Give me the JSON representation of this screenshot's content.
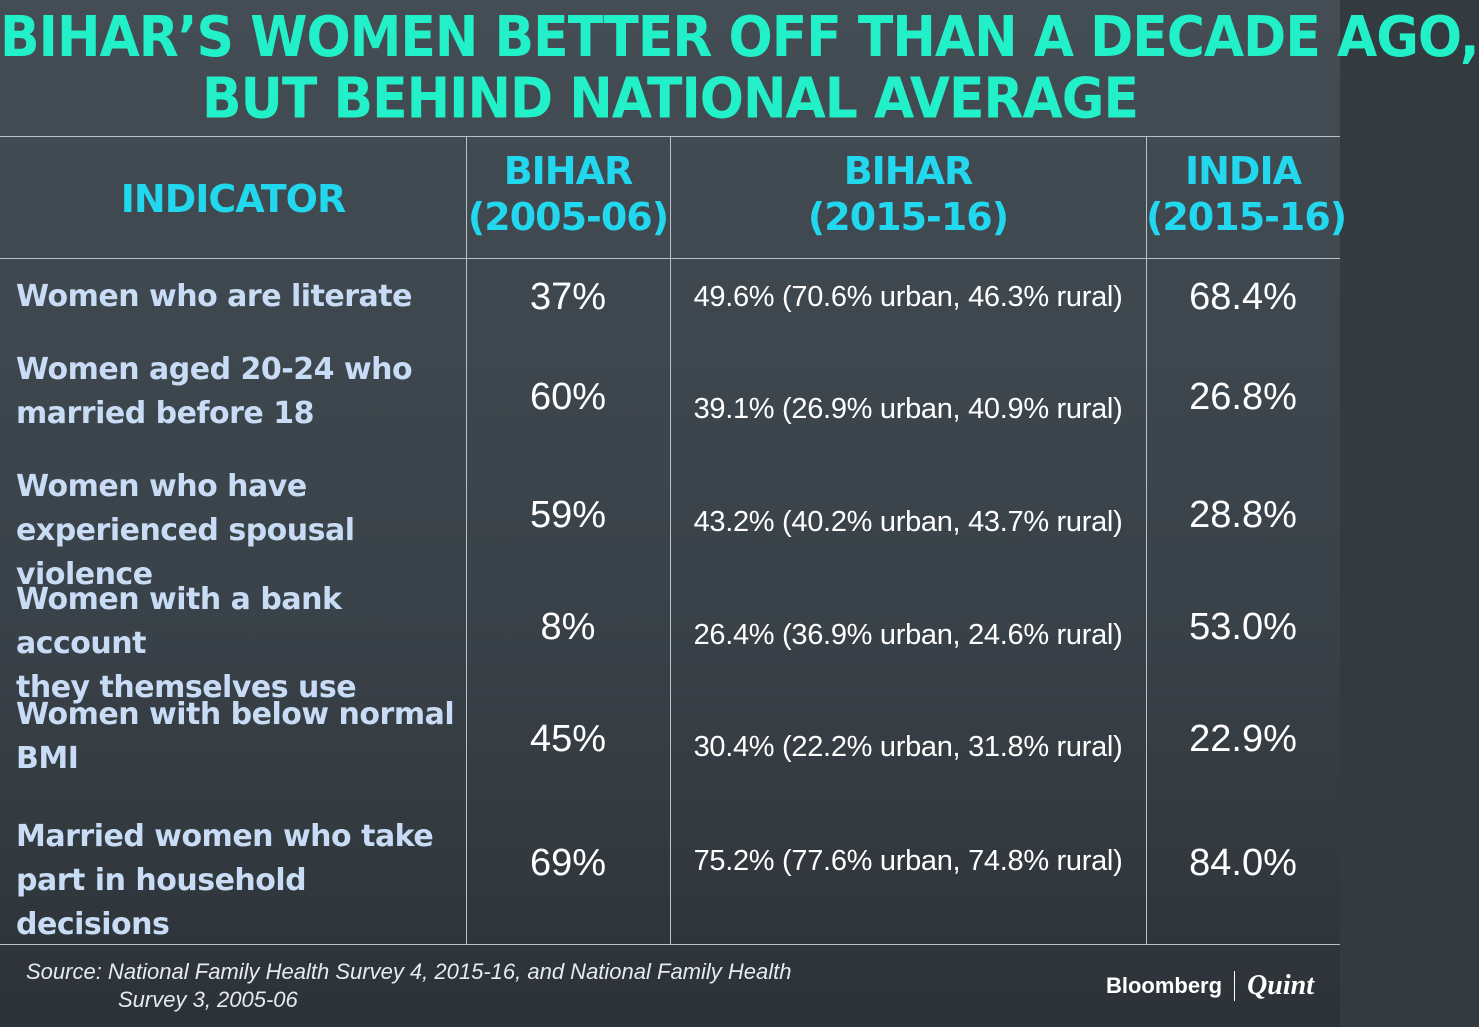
{
  "chart_data": {
    "type": "table",
    "title": [
      "BIHAR’S WOMEN BETTER OFF THAN A DECADE AGO,",
      "BUT BEHIND NATIONAL AVERAGE"
    ],
    "columns": [
      {
        "line1": "INDICATOR",
        "line2": ""
      },
      {
        "line1": "BIHAR",
        "line2": "(2005-06)"
      },
      {
        "line1": "BIHAR",
        "line2": "(2015-16)"
      },
      {
        "line1": "INDIA",
        "line2": "(2015-16)"
      }
    ],
    "rows": [
      {
        "indicator": [
          "Women who are literate"
        ],
        "bihar_2005": "37%",
        "bihar_2015": "49.6% (70.6% urban, 46.3% rural)",
        "india_2015": "68.4%"
      },
      {
        "indicator": [
          "Women aged 20-24 who",
          "married before 18"
        ],
        "bihar_2005": "60%",
        "bihar_2015": "39.1% (26.9% urban, 40.9% rural)",
        "india_2015": "26.8%"
      },
      {
        "indicator": [
          "Women who have",
          "experienced spousal violence"
        ],
        "bihar_2005": "59%",
        "bihar_2015": "43.2% (40.2% urban, 43.7% rural)",
        "india_2015": "28.8%"
      },
      {
        "indicator": [
          "Women with a bank account",
          "they themselves use"
        ],
        "bihar_2005": "8%",
        "bihar_2015": "26.4% (36.9% urban, 24.6% rural)",
        "india_2015": "53.0%"
      },
      {
        "indicator": [
          "Women with below normal",
          "BMI"
        ],
        "bihar_2005": "45%",
        "bihar_2015": "30.4% (22.2% urban, 31.8% rural)",
        "india_2015": "22.9%"
      },
      {
        "indicator": [
          "Married women who take",
          "part in household decisions"
        ],
        "bihar_2005": "69%",
        "bihar_2015": "75.2% (77.6% urban, 74.8% rural)",
        "india_2015": "84.0%"
      }
    ]
  },
  "source": {
    "line1": "Source: National Family Health Survey 4, 2015-16, and National Family Health",
    "line2": "Survey 3, 2005-06"
  },
  "brand": {
    "name1": "Bloomberg",
    "name2": "Quint"
  },
  "colors": {
    "title": "#22f0c8",
    "header": "#22d8ee",
    "indicator_text": "#c9dcf6",
    "value_text": "#ffffff",
    "background": "#3d454c",
    "grid": "#b9c2c8"
  }
}
